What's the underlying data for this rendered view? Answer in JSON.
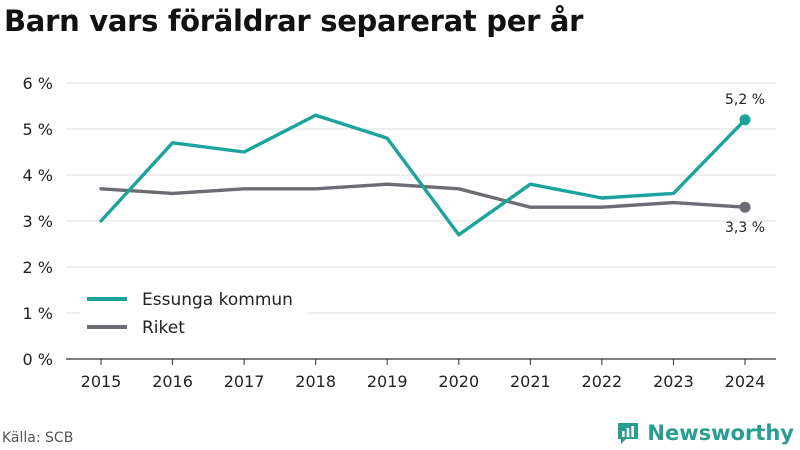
{
  "chart_data": {
    "type": "line",
    "title": "Barn vars föräldrar separerat per år",
    "x": [
      "2015",
      "2016",
      "2017",
      "2018",
      "2019",
      "2020",
      "2021",
      "2022",
      "2023",
      "2024"
    ],
    "series": [
      {
        "name": "Essunga kommun",
        "color": "#1ba39c",
        "values": [
          3.0,
          4.7,
          4.5,
          5.3,
          4.8,
          2.7,
          3.8,
          3.5,
          3.6,
          5.2
        ],
        "end_label": "5,2 %"
      },
      {
        "name": "Riket",
        "color": "#6e6c72",
        "values": [
          3.7,
          3.6,
          3.7,
          3.7,
          3.8,
          3.7,
          3.3,
          3.3,
          3.4,
          3.3
        ],
        "end_label": "3,3 %"
      }
    ],
    "ylim": [
      0,
      6
    ],
    "yticks": [
      0,
      1,
      2,
      3,
      4,
      5,
      6
    ],
    "ytick_labels": [
      "0 %",
      "1 %",
      "2 %",
      "3 %",
      "4 %",
      "5 %",
      "6 %"
    ],
    "grid": true,
    "legend_position": "bottom-left"
  },
  "footer": {
    "source": "Källa: SCB",
    "brand": "Newsworthy"
  },
  "colors": {
    "brand": "#2a9d93",
    "grid": "#dddddd",
    "axis": "#333333"
  },
  "icons": {
    "brand_logo": "bar-chart-icon"
  }
}
